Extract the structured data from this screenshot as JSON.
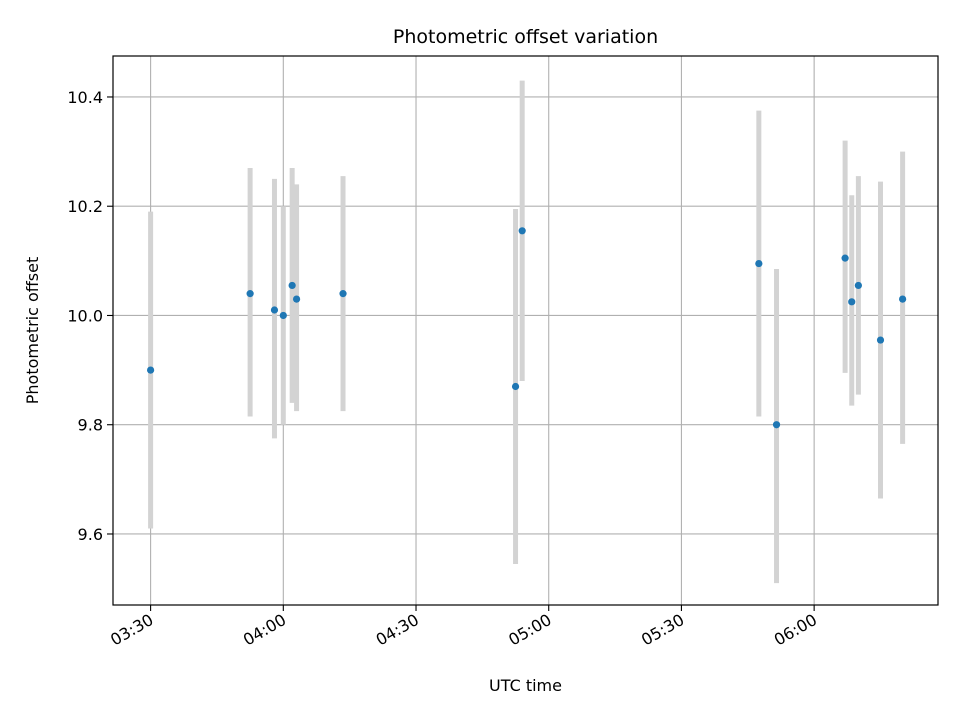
{
  "chart_data": {
    "type": "scatter",
    "title": "Photometric offset variation",
    "xlabel": "UTC time",
    "ylabel": "Photometric offset",
    "grid": true,
    "x_ticks": [
      "03:30",
      "04:00",
      "04:30",
      "05:00",
      "05:30",
      "06:00"
    ],
    "x_tick_minutes": [
      210,
      240,
      270,
      300,
      330,
      360
    ],
    "xlim": [
      "03:21.5",
      "06:28"
    ],
    "ylim": [
      9.47,
      10.475
    ],
    "y_ticks": [
      9.6,
      9.8,
      10.0,
      10.2,
      10.4
    ],
    "y_tick_labels": [
      "9.6",
      "9.8",
      "10.0",
      "10.2",
      "10.4"
    ],
    "colors": {
      "point": "#1f77b4",
      "errorbar": "#d3d3d3",
      "grid": "#b0b0b0"
    },
    "points": [
      {
        "t": "03:30",
        "y": 9.9,
        "low": 9.61,
        "high": 10.19
      },
      {
        "t": "03:52.5",
        "y": 10.04,
        "low": 9.815,
        "high": 10.27
      },
      {
        "t": "03:58",
        "y": 10.01,
        "low": 9.775,
        "high": 10.25
      },
      {
        "t": "04:00",
        "y": 10.0,
        "low": 9.8,
        "high": 10.2
      },
      {
        "t": "04:02",
        "y": 10.055,
        "low": 9.84,
        "high": 10.27
      },
      {
        "t": "04:03",
        "y": 10.03,
        "low": 9.825,
        "high": 10.24
      },
      {
        "t": "04:13.5",
        "y": 10.04,
        "low": 9.825,
        "high": 10.255
      },
      {
        "t": "04:52.5",
        "y": 9.87,
        "low": 9.545,
        "high": 10.195
      },
      {
        "t": "04:54",
        "y": 10.155,
        "low": 9.88,
        "high": 10.43
      },
      {
        "t": "05:47.5",
        "y": 10.095,
        "low": 9.815,
        "high": 10.375
      },
      {
        "t": "05:51.5",
        "y": 9.8,
        "low": 9.51,
        "high": 10.085
      },
      {
        "t": "06:07",
        "y": 10.105,
        "low": 9.895,
        "high": 10.32
      },
      {
        "t": "06:08.5",
        "y": 10.025,
        "low": 9.835,
        "high": 10.22
      },
      {
        "t": "06:10",
        "y": 10.055,
        "low": 9.855,
        "high": 10.255
      },
      {
        "t": "06:15",
        "y": 9.955,
        "low": 9.665,
        "high": 10.245
      },
      {
        "t": "06:20",
        "y": 10.03,
        "low": 9.765,
        "high": 10.3
      }
    ]
  }
}
